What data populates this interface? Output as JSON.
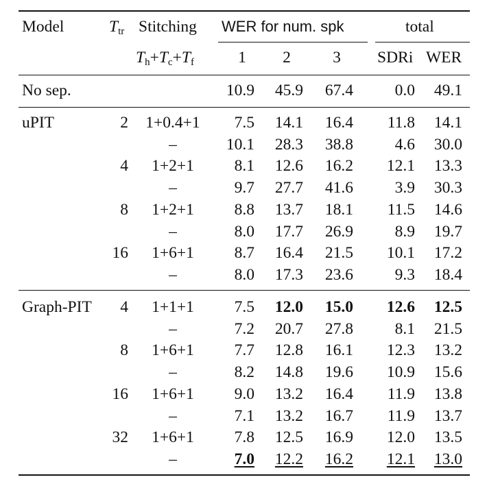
{
  "header": {
    "model": "Model",
    "ttr_main": "T",
    "ttr_sub": "tr",
    "stitching": "Stitching",
    "wer_group": "WER for num. spk",
    "total_group": "total",
    "stitch_formula": {
      "t1": "T",
      "s1": "h",
      "plus1": "+",
      "t2": "T",
      "s2": "c",
      "plus2": "+",
      "t3": "T",
      "s3": "f"
    },
    "spk1": "1",
    "spk2": "2",
    "spk3": "3",
    "sdri": "SDRi",
    "wer": "WER"
  },
  "rows": [
    {
      "model": "No sep.",
      "ttr": "",
      "stitch": "",
      "w1": "10.9",
      "w2": "45.9",
      "w3": "67.4",
      "sdri": "0.0",
      "wer": "49.1"
    },
    {
      "model": "uPIT",
      "ttr": "2",
      "stitch": "1+0.4+1",
      "w1": "7.5",
      "w2": "14.1",
      "w3": "16.4",
      "sdri": "11.8",
      "wer": "14.1"
    },
    {
      "model": "",
      "ttr": "",
      "stitch": "–",
      "w1": "10.1",
      "w2": "28.3",
      "w3": "38.8",
      "sdri": "4.6",
      "wer": "30.0"
    },
    {
      "model": "",
      "ttr": "4",
      "stitch": "1+2+1",
      "w1": "8.1",
      "w2": "12.6",
      "w3": "16.2",
      "sdri": "12.1",
      "wer": "13.3"
    },
    {
      "model": "",
      "ttr": "",
      "stitch": "–",
      "w1": "9.7",
      "w2": "27.7",
      "w3": "41.6",
      "sdri": "3.9",
      "wer": "30.3"
    },
    {
      "model": "",
      "ttr": "8",
      "stitch": "1+2+1",
      "w1": "8.8",
      "w2": "13.7",
      "w3": "18.1",
      "sdri": "11.5",
      "wer": "14.6"
    },
    {
      "model": "",
      "ttr": "",
      "stitch": "–",
      "w1": "8.0",
      "w2": "17.7",
      "w3": "26.9",
      "sdri": "8.9",
      "wer": "19.7"
    },
    {
      "model": "",
      "ttr": "16",
      "stitch": "1+6+1",
      "w1": "8.7",
      "w2": "16.4",
      "w3": "21.5",
      "sdri": "10.1",
      "wer": "17.2"
    },
    {
      "model": "",
      "ttr": "",
      "stitch": "–",
      "w1": "8.0",
      "w2": "17.3",
      "w3": "23.6",
      "sdri": "9.3",
      "wer": "18.4"
    },
    {
      "model": "Graph-PIT",
      "ttr": "4",
      "stitch": "1+1+1",
      "w1": "7.5",
      "w2": "12.0",
      "w3": "15.0",
      "sdri": "12.6",
      "wer": "12.5"
    },
    {
      "model": "",
      "ttr": "",
      "stitch": "–",
      "w1": "7.2",
      "w2": "20.7",
      "w3": "27.8",
      "sdri": "8.1",
      "wer": "21.5"
    },
    {
      "model": "",
      "ttr": "8",
      "stitch": "1+6+1",
      "w1": "7.7",
      "w2": "12.8",
      "w3": "16.1",
      "sdri": "12.3",
      "wer": "13.2"
    },
    {
      "model": "",
      "ttr": "",
      "stitch": "–",
      "w1": "8.2",
      "w2": "14.8",
      "w3": "19.6",
      "sdri": "10.9",
      "wer": "15.6"
    },
    {
      "model": "",
      "ttr": "16",
      "stitch": "1+6+1",
      "w1": "9.0",
      "w2": "13.2",
      "w3": "16.4",
      "sdri": "11.9",
      "wer": "13.8"
    },
    {
      "model": "",
      "ttr": "",
      "stitch": "–",
      "w1": "7.1",
      "w2": "13.2",
      "w3": "16.7",
      "sdri": "11.9",
      "wer": "13.7"
    },
    {
      "model": "",
      "ttr": "32",
      "stitch": "1+6+1",
      "w1": "7.8",
      "w2": "12.5",
      "w3": "16.9",
      "sdri": "12.0",
      "wer": "13.5"
    },
    {
      "model": "",
      "ttr": "",
      "stitch": "–",
      "w1": "7.0",
      "w2": "12.2",
      "w3": "16.2",
      "sdri": "12.1",
      "wer": "13.0"
    }
  ],
  "emphasis": {
    "bold": [
      "9.w2",
      "9.w3",
      "9.sdri",
      "9.wer",
      "16.w1"
    ],
    "underline": [
      "16.w1",
      "16.w2",
      "16.w3",
      "16.sdri",
      "16.wer"
    ]
  }
}
